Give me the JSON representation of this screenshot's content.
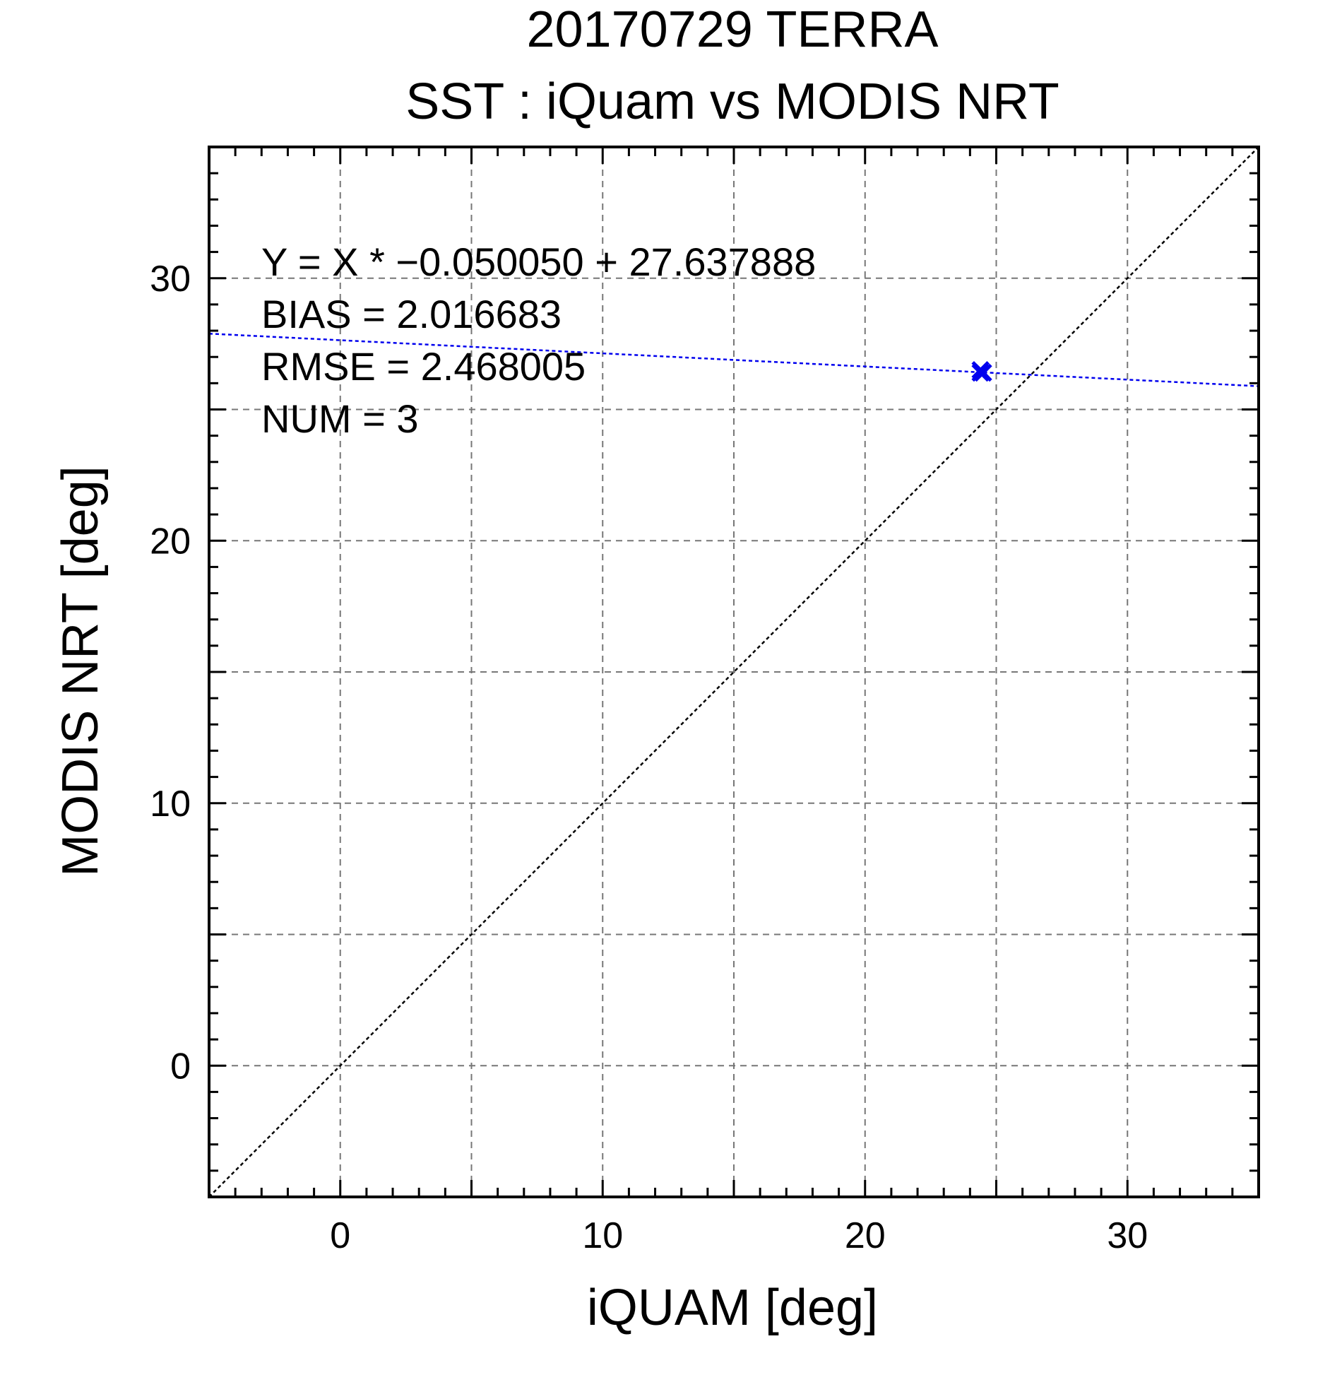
{
  "chart_data": {
    "type": "scatter",
    "title": "20170729 TERRA",
    "subtitle": "SST : iQuam vs MODIS NRT",
    "xlabel": "iQUAM [deg]",
    "ylabel": "MODIS NRT [deg]",
    "xlim": [
      -5,
      35
    ],
    "ylim": [
      -5,
      35
    ],
    "xticks": [
      0,
      10,
      20,
      30
    ],
    "yticks": [
      0,
      10,
      20,
      30
    ],
    "xtick_labels": [
      "0",
      "10",
      "20",
      "30"
    ],
    "ytick_labels": [
      "0",
      "10",
      "20",
      "30"
    ],
    "grid": true,
    "points": [
      {
        "x": 24.4,
        "y": 26.4
      },
      {
        "x": 24.5,
        "y": 26.4
      },
      {
        "x": 24.4,
        "y": 26.5
      }
    ],
    "fit_line": {
      "slope": -0.05005,
      "intercept": 27.637888
    },
    "reference_line": {
      "slope": 1,
      "intercept": 0
    },
    "annotations": [
      "Y = X * −0.050050 + 27.637888",
      "BIAS = 2.016683",
      "RMSE = 2.468005",
      "NUM = 3"
    ],
    "colors": {
      "points": "#0000ee",
      "fit_line": "#0000ee",
      "reference_line": "#000000",
      "grid": "#777777",
      "frame": "#000000"
    }
  }
}
